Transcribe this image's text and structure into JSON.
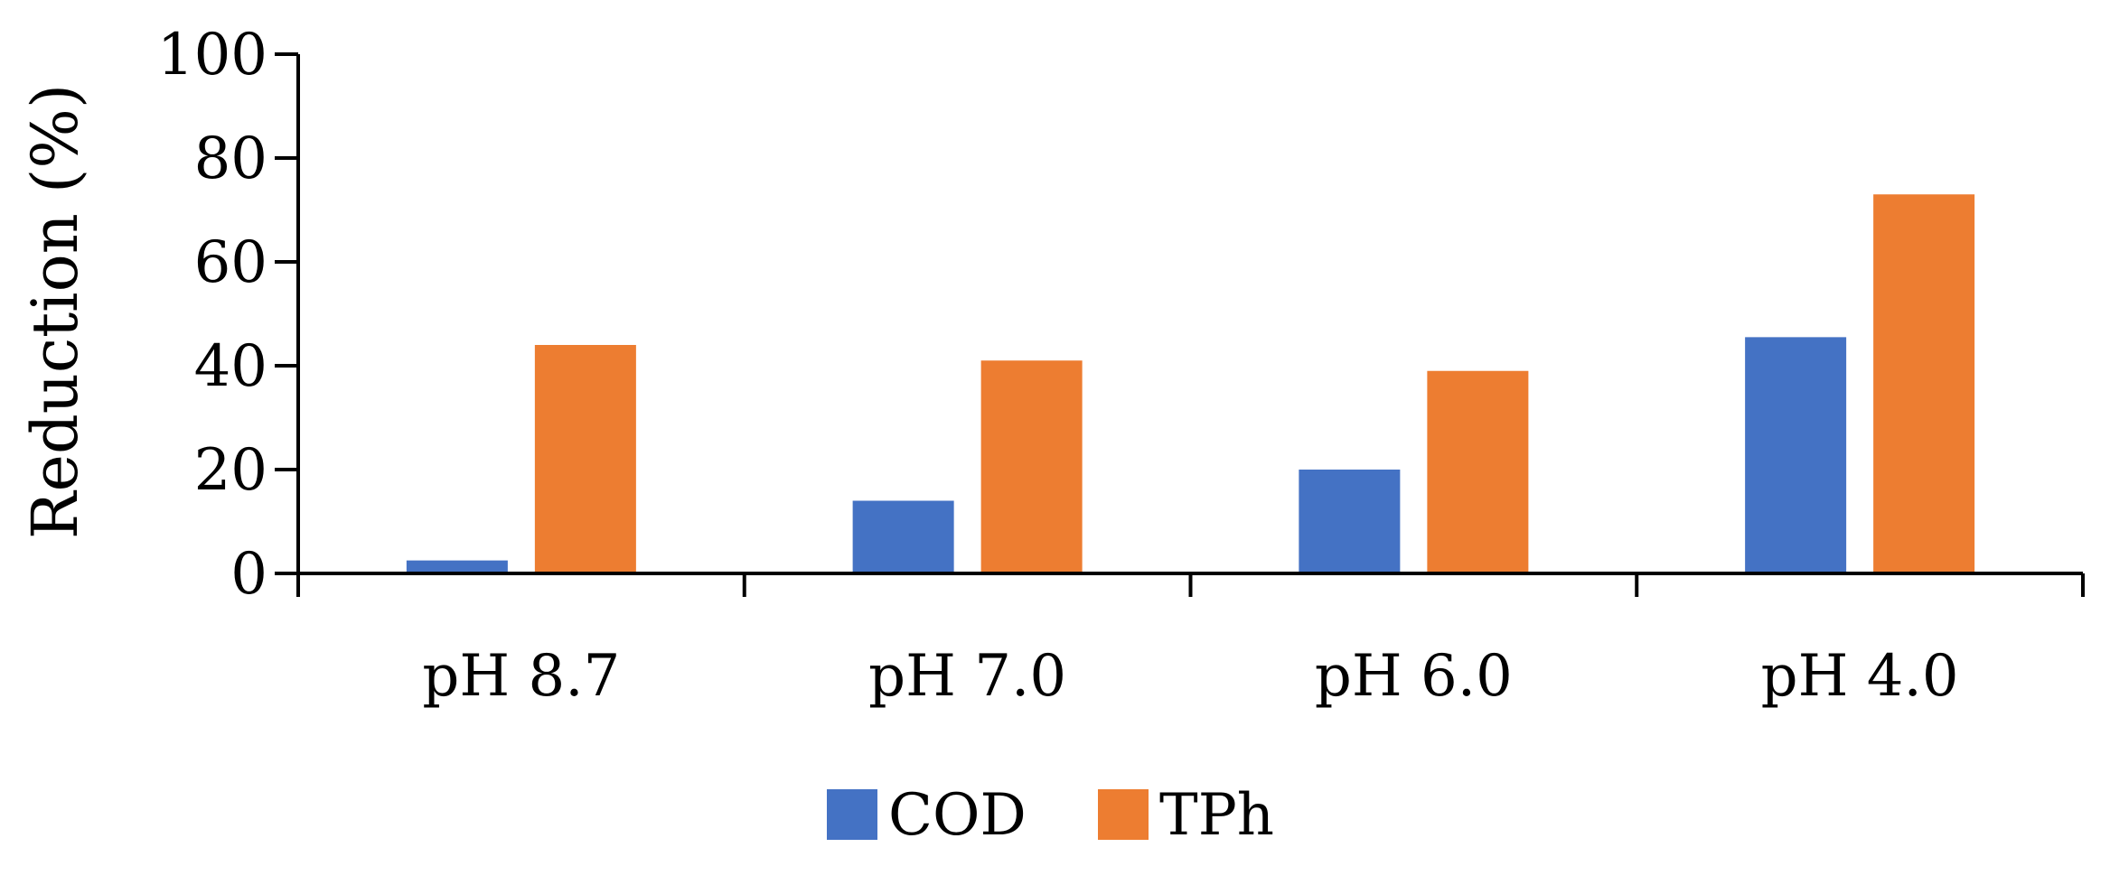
{
  "chart_data": {
    "type": "bar",
    "title": "",
    "xlabel": "",
    "ylabel": "Reduction (%)",
    "categories": [
      "pH 8.7",
      "pH 7.0",
      "pH 6.0",
      "pH 4.0"
    ],
    "series": [
      {
        "name": "COD",
        "color": "#4472C4",
        "values": [
          2.5,
          14,
          20,
          45.5
        ]
      },
      {
        "name": "TPh",
        "color": "#ED7D31",
        "values": [
          44,
          41,
          39,
          73
        ]
      }
    ],
    "ylim": [
      0,
      100
    ],
    "yticks": [
      "0",
      "20",
      "40",
      "60",
      "80",
      "100"
    ],
    "grid": false,
    "legend": "bottom-center"
  }
}
